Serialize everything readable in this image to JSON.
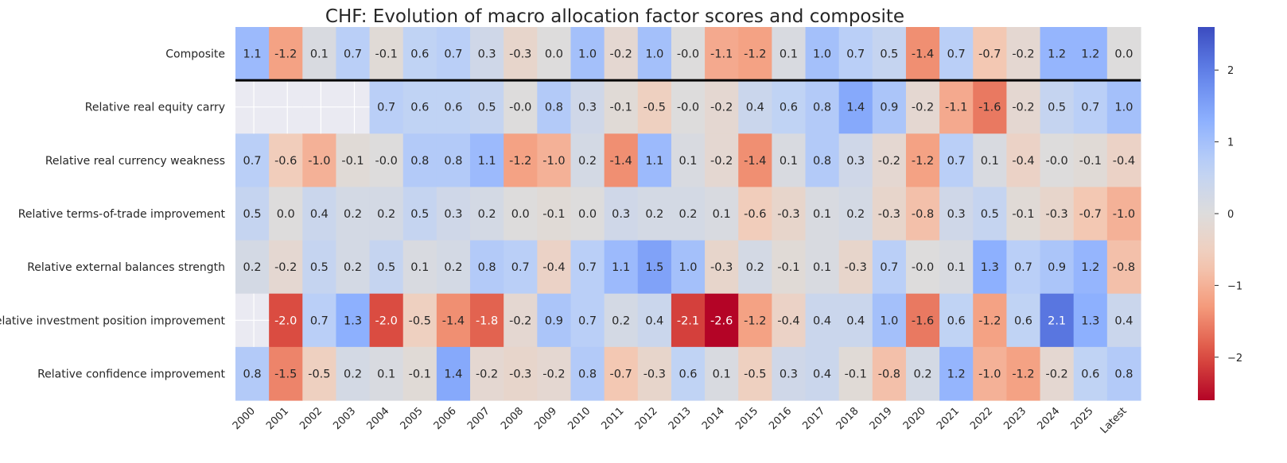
{
  "chart_data": {
    "type": "heatmap",
    "title": "CHF: Evolution of macro allocation factor scores and composite",
    "columns": [
      "2000",
      "2001",
      "2002",
      "2003",
      "2004",
      "2005",
      "2006",
      "2007",
      "2008",
      "2009",
      "2010",
      "2011",
      "2012",
      "2013",
      "2014",
      "2015",
      "2016",
      "2017",
      "2018",
      "2019",
      "2020",
      "2021",
      "2022",
      "2023",
      "2024",
      "2025",
      "Latest"
    ],
    "rows": [
      {
        "label": "Composite",
        "values": [
          1.1,
          -1.2,
          0.1,
          0.7,
          -0.1,
          0.6,
          0.7,
          0.3,
          -0.3,
          0.0,
          1.0,
          -0.2,
          1.0,
          -0.0,
          -1.1,
          -1.2,
          0.1,
          1.0,
          0.7,
          0.5,
          -1.4,
          0.7,
          -0.7,
          -0.2,
          1.2,
          1.2,
          0.0
        ]
      },
      {
        "label": "Relative real equity carry",
        "values": [
          null,
          null,
          null,
          null,
          0.7,
          0.6,
          0.6,
          0.5,
          -0.0,
          0.8,
          0.3,
          -0.1,
          -0.5,
          -0.0,
          -0.2,
          0.4,
          0.6,
          0.8,
          1.4,
          0.9,
          -0.2,
          -1.1,
          -1.6,
          -0.2,
          0.5,
          0.7,
          1.0
        ]
      },
      {
        "label": "Relative real currency weakness",
        "values": [
          0.7,
          -0.6,
          -1.0,
          -0.1,
          -0.0,
          0.8,
          0.8,
          1.1,
          -1.2,
          -1.0,
          0.2,
          -1.4,
          1.1,
          0.1,
          -0.2,
          -1.4,
          0.1,
          0.8,
          0.3,
          -0.2,
          -1.2,
          0.7,
          0.1,
          -0.4,
          -0.0,
          -0.1,
          -0.4
        ]
      },
      {
        "label": "Relative terms-of-trade improvement",
        "values": [
          0.5,
          0.0,
          0.4,
          0.2,
          0.2,
          0.5,
          0.3,
          0.2,
          0.0,
          -0.1,
          0.0,
          0.3,
          0.2,
          0.2,
          0.1,
          -0.6,
          -0.3,
          0.1,
          0.2,
          -0.3,
          -0.8,
          0.3,
          0.5,
          -0.1,
          -0.3,
          -0.7,
          -1.0
        ]
      },
      {
        "label": "Relative external balances strength",
        "values": [
          0.2,
          -0.2,
          0.5,
          0.2,
          0.5,
          0.1,
          0.2,
          0.8,
          0.7,
          -0.4,
          0.7,
          1.1,
          1.5,
          1.0,
          -0.3,
          0.2,
          -0.1,
          0.1,
          -0.3,
          0.7,
          -0.0,
          0.1,
          1.3,
          0.7,
          0.9,
          1.2,
          -0.8
        ]
      },
      {
        "label": "Relative investment position improvement",
        "values": [
          null,
          -2.0,
          0.7,
          1.3,
          -2.0,
          -0.5,
          -1.4,
          -1.8,
          -0.2,
          0.9,
          0.7,
          0.2,
          0.4,
          -2.1,
          -2.6,
          -1.2,
          -0.4,
          0.4,
          0.4,
          1.0,
          -1.6,
          0.6,
          -1.2,
          0.6,
          2.1,
          1.3,
          0.4
        ]
      },
      {
        "label": "Relative confidence improvement",
        "values": [
          0.8,
          -1.5,
          -0.5,
          0.2,
          0.1,
          -0.1,
          1.4,
          -0.2,
          -0.3,
          -0.2,
          0.8,
          -0.7,
          -0.3,
          0.6,
          0.1,
          -0.5,
          0.3,
          0.4,
          -0.1,
          -0.8,
          0.2,
          1.2,
          -1.0,
          -1.2,
          -0.2,
          0.6,
          0.8
        ]
      }
    ],
    "colorscale": "coolwarm_r",
    "vmin": -2.6,
    "vmax": 2.6,
    "colorbar_ticks": [
      2,
      1,
      0,
      -1,
      -2
    ],
    "colorbar_tick_labels": [
      "2",
      "1",
      "0",
      "−1",
      "−2"
    ],
    "missing_color": "#eaeaf2",
    "separator_after_row": 0
  }
}
